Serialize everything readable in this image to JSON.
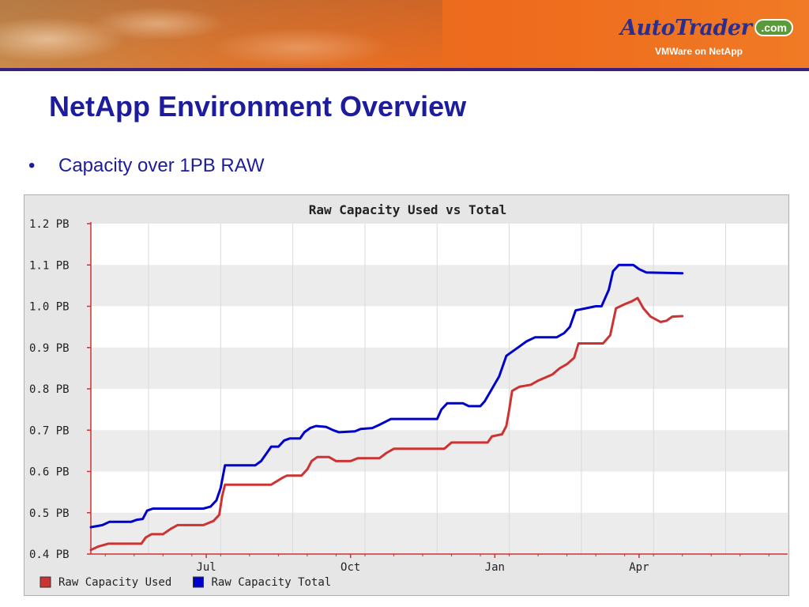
{
  "header": {
    "logo_text": "AutoTrader",
    "logo_suffix": ".com",
    "subtitle": "VMWare on NetApp"
  },
  "slide": {
    "title": "NetApp Environment Overview",
    "bullet": "Capacity over 1PB RAW"
  },
  "colors": {
    "title": "#1c1c9c",
    "used": "#cc3333",
    "total": "#0000cc",
    "banner_rule": "#3a1f7a"
  },
  "chart_data": {
    "type": "line",
    "title": "Raw Capacity Used vs Total",
    "ylim": [
      0.4,
      1.2
    ],
    "yticks": [
      0.4,
      0.5,
      0.6,
      0.7,
      0.8,
      0.9,
      1.0,
      1.1,
      1.2
    ],
    "ytick_labels": [
      "0.4 PB",
      "0.5 PB",
      "0.6 PB",
      "0.7 PB",
      "0.8 PB",
      "0.9 PB",
      "1.0 PB",
      "1.1 PB",
      "1.2 PB"
    ],
    "xlim": [
      0,
      48.3
    ],
    "xticks": [
      {
        "x": 8,
        "label": "Jul"
      },
      {
        "x": 18,
        "label": "Oct"
      },
      {
        "x": 28,
        "label": "Jan"
      },
      {
        "x": 38,
        "label": "Apr"
      }
    ],
    "grid": true,
    "legend_position": "bottom-left",
    "series": [
      {
        "name": "Raw Capacity Used",
        "color": "#cc3333",
        "points": [
          [
            0,
            0.41
          ],
          [
            0.5,
            0.418
          ],
          [
            1.2,
            0.425
          ],
          [
            3.5,
            0.425
          ],
          [
            3.8,
            0.44
          ],
          [
            4.2,
            0.448
          ],
          [
            5,
            0.448
          ],
          [
            5.5,
            0.46
          ],
          [
            6,
            0.47
          ],
          [
            7.8,
            0.47
          ],
          [
            8.5,
            0.48
          ],
          [
            8.9,
            0.495
          ],
          [
            9.1,
            0.54
          ],
          [
            9.3,
            0.568
          ],
          [
            12.5,
            0.568
          ],
          [
            13.3,
            0.585
          ],
          [
            13.6,
            0.59
          ],
          [
            14.6,
            0.59
          ],
          [
            15,
            0.605
          ],
          [
            15.3,
            0.625
          ],
          [
            15.7,
            0.635
          ],
          [
            16.5,
            0.635
          ],
          [
            17,
            0.625
          ],
          [
            18,
            0.625
          ],
          [
            18.5,
            0.632
          ],
          [
            20,
            0.632
          ],
          [
            20.5,
            0.645
          ],
          [
            21,
            0.655
          ],
          [
            24.5,
            0.655
          ],
          [
            25,
            0.67
          ],
          [
            27.5,
            0.67
          ],
          [
            27.8,
            0.685
          ],
          [
            28.5,
            0.69
          ],
          [
            28.8,
            0.71
          ],
          [
            29,
            0.75
          ],
          [
            29.2,
            0.795
          ],
          [
            29.7,
            0.805
          ],
          [
            30.5,
            0.81
          ],
          [
            31,
            0.82
          ],
          [
            32,
            0.835
          ],
          [
            32.5,
            0.85
          ],
          [
            33,
            0.86
          ],
          [
            33.5,
            0.875
          ],
          [
            33.8,
            0.91
          ],
          [
            35.5,
            0.91
          ],
          [
            36,
            0.93
          ],
          [
            36.4,
            0.995
          ],
          [
            37,
            1.005
          ],
          [
            37.5,
            1.012
          ],
          [
            37.9,
            1.02
          ],
          [
            38.3,
            0.995
          ],
          [
            38.8,
            0.975
          ],
          [
            39.5,
            0.962
          ],
          [
            39.9,
            0.965
          ],
          [
            40.3,
            0.975
          ],
          [
            41,
            0.976
          ]
        ]
      },
      {
        "name": "Raw Capacity Total",
        "color": "#0000cc",
        "points": [
          [
            0,
            0.465
          ],
          [
            0.8,
            0.47
          ],
          [
            1.3,
            0.478
          ],
          [
            2.8,
            0.478
          ],
          [
            3.2,
            0.483
          ],
          [
            3.6,
            0.485
          ],
          [
            3.9,
            0.505
          ],
          [
            4.3,
            0.51
          ],
          [
            7.8,
            0.51
          ],
          [
            8.3,
            0.515
          ],
          [
            8.7,
            0.53
          ],
          [
            9,
            0.56
          ],
          [
            9.3,
            0.615
          ],
          [
            11.4,
            0.615
          ],
          [
            11.8,
            0.625
          ],
          [
            12.2,
            0.645
          ],
          [
            12.5,
            0.66
          ],
          [
            13,
            0.66
          ],
          [
            13.4,
            0.675
          ],
          [
            13.8,
            0.68
          ],
          [
            14.5,
            0.68
          ],
          [
            14.8,
            0.695
          ],
          [
            15.2,
            0.705
          ],
          [
            15.6,
            0.71
          ],
          [
            16.3,
            0.708
          ],
          [
            16.8,
            0.7
          ],
          [
            17.2,
            0.695
          ],
          [
            18.3,
            0.697
          ],
          [
            18.7,
            0.703
          ],
          [
            19.5,
            0.705
          ],
          [
            20,
            0.713
          ],
          [
            20.4,
            0.72
          ],
          [
            20.8,
            0.727
          ],
          [
            24,
            0.727
          ],
          [
            24.3,
            0.75
          ],
          [
            24.7,
            0.765
          ],
          [
            25.8,
            0.765
          ],
          [
            26.2,
            0.758
          ],
          [
            27,
            0.758
          ],
          [
            27.3,
            0.77
          ],
          [
            27.8,
            0.8
          ],
          [
            28.3,
            0.83
          ],
          [
            28.8,
            0.88
          ],
          [
            29.6,
            0.9
          ],
          [
            30.2,
            0.915
          ],
          [
            30.8,
            0.925
          ],
          [
            32.3,
            0.925
          ],
          [
            32.8,
            0.935
          ],
          [
            33.2,
            0.95
          ],
          [
            33.6,
            0.99
          ],
          [
            34.3,
            0.995
          ],
          [
            35,
            1.0
          ],
          [
            35.4,
            1.0
          ],
          [
            35.9,
            1.04
          ],
          [
            36.2,
            1.085
          ],
          [
            36.6,
            1.1
          ],
          [
            37.6,
            1.1
          ],
          [
            38,
            1.09
          ],
          [
            38.5,
            1.082
          ],
          [
            41,
            1.08
          ]
        ]
      }
    ]
  }
}
